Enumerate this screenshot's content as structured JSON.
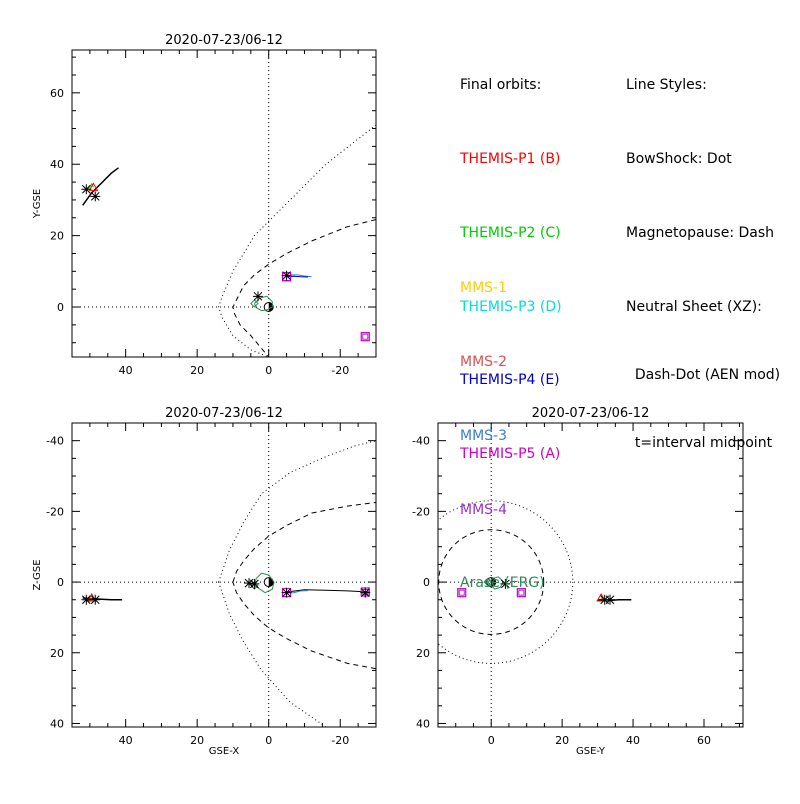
{
  "colors": {
    "themis_p1": "#ff0000",
    "themis_p2": "#00cc00",
    "themis_p3": "#00dddd",
    "themis_p4": "#0000cc",
    "themis_p5": "#cc00cc",
    "mms1": "#ffcc00",
    "mms2": "#e05050",
    "mms3": "#3a7fd0",
    "mms4": "#9933cc",
    "arase": "#2e8b57",
    "text": "#000000"
  },
  "legend": {
    "final_orbits_title": "Final orbits:",
    "themis": [
      {
        "label": "THEMIS-P1 (B)",
        "color": "#ff0000"
      },
      {
        "label": "THEMIS-P2 (C)",
        "color": "#00cc00"
      },
      {
        "label": "THEMIS-P3 (D)",
        "color": "#00dddd"
      },
      {
        "label": "THEMIS-P4 (E)",
        "color": "#0000cc"
      },
      {
        "label": "THEMIS-P5 (A)",
        "color": "#cc00cc"
      }
    ],
    "others": [
      {
        "label": "MMS-1",
        "color": "#ffcc00"
      },
      {
        "label": "MMS-2",
        "color": "#e05050"
      },
      {
        "label": "MMS-3",
        "color": "#3a7fd0"
      },
      {
        "label": "MMS-4",
        "color": "#9933cc"
      },
      {
        "label": "Arase (ERG)",
        "color": "#2e8b57"
      }
    ],
    "line_styles_title": "Line Styles:",
    "styles": [
      "BowShock: Dot",
      "Magnetopause: Dash",
      "Neutral Sheet (XZ):",
      "  Dash-Dot (AEN mod)",
      "  t=interval midpoint"
    ]
  },
  "chart_data": [
    {
      "id": "xy",
      "type": "line",
      "title": "2020-07-23/06-12",
      "xlabel": "",
      "ylabel": "Y-GSE",
      "xlim": [
        55,
        -30
      ],
      "ylim": [
        72,
        -14
      ],
      "xticks": [
        40,
        20,
        0,
        -20
      ],
      "yticks": [
        0,
        20,
        40,
        60
      ],
      "series": [
        {
          "kind": "bowshock",
          "color": "#000000",
          "dash": "1,3",
          "x": [
            -30,
            -16,
            -6,
            4,
            10,
            13,
            14,
            13,
            10,
            5,
            0
          ],
          "y": [
            51,
            40,
            30,
            20,
            10,
            3,
            0,
            -3,
            -8,
            -12,
            -14
          ]
        },
        {
          "kind": "magnetopause",
          "color": "#000000",
          "dash": "5,4",
          "x": [
            -30,
            -22,
            -12,
            -5,
            0,
            4,
            7,
            8.5,
            9.5,
            10,
            9.5,
            8,
            5,
            0
          ],
          "y": [
            24.5,
            22.5,
            18.5,
            15,
            12,
            9,
            6,
            3,
            1,
            0,
            -2,
            -5,
            -8,
            -14
          ]
        },
        {
          "kind": "earth",
          "color": "#000000",
          "x": [
            0
          ],
          "y": [
            0
          ]
        },
        {
          "kind": "arase",
          "color": "#2e8b57",
          "x": [
            4,
            2.5,
            0.5,
            -1,
            -1,
            0.5,
            2,
            3.5,
            4
          ],
          "y": [
            1,
            2.5,
            3,
            1.5,
            0,
            -0.8,
            -1,
            -0.2,
            1
          ]
        },
        {
          "kind": "mms_track",
          "color": "#3a7fd0",
          "x": [
            -5,
            -6,
            -8,
            -10,
            -12
          ],
          "y": [
            8.5,
            9,
            9,
            8.7,
            8.5
          ]
        },
        {
          "kind": "themis_track",
          "color": "#0000cc",
          "x": [
            -5,
            -7,
            -9,
            -11
          ],
          "y": [
            8.5,
            8.6,
            8.5,
            8.4
          ]
        },
        {
          "kind": "themis_far",
          "color": "#cc00cc",
          "x": [
            -27
          ],
          "y": [
            -8.3
          ]
        },
        {
          "kind": "gsat_track",
          "color": "#000000",
          "x": [
            52,
            49.5,
            46.5,
            44,
            42
          ],
          "y": [
            28.5,
            32,
            35,
            37.5,
            39
          ]
        },
        {
          "kind": "gsat_green",
          "color": "#00cc00",
          "x": [
            49,
            49.5,
            50.5,
            51
          ],
          "y": [
            33.5,
            34.5,
            33,
            32.5
          ]
        },
        {
          "kind": "markers",
          "x": [
            48.5,
            51,
            3,
            -5
          ],
          "y": [
            31,
            33,
            3,
            8.8
          ]
        }
      ]
    },
    {
      "id": "xz",
      "type": "line",
      "title": "2020-07-23/06-12",
      "xlabel": "GSE-X",
      "ylabel": "Z-GSE",
      "xlim": [
        55,
        -30
      ],
      "ylim": [
        -45,
        41
      ],
      "xticks": [
        40,
        20,
        0,
        -20
      ],
      "yticks": [
        40,
        20,
        0,
        -20,
        -40
      ],
      "series": [
        {
          "kind": "bowshock_upper",
          "color": "#000000",
          "dash": "1,3",
          "x": [
            -16,
            -6,
            2,
            7,
            11,
            13,
            14
          ],
          "y": [
            41,
            34,
            25,
            17,
            9,
            3,
            0
          ]
        },
        {
          "kind": "bowshock_lower",
          "color": "#000000",
          "dash": "1,3",
          "x": [
            14,
            13,
            11,
            7,
            2,
            -6,
            -16,
            -24,
            -30
          ],
          "y": [
            0,
            -3,
            -9,
            -17,
            -25,
            -31,
            -35.5,
            -38.5,
            -40
          ]
        },
        {
          "kind": "magnetopause_upper",
          "color": "#000000",
          "dash": "5,4",
          "x": [
            -30,
            -22,
            -12,
            -5,
            0,
            4,
            7,
            9,
            10
          ],
          "y": [
            24.5,
            23,
            19.5,
            16,
            13,
            9.5,
            6,
            3,
            0
          ]
        },
        {
          "kind": "magnetopause_lower",
          "color": "#000000",
          "dash": "5,4",
          "x": [
            10,
            9,
            7,
            4,
            0,
            -5,
            -12,
            -22,
            -30
          ],
          "y": [
            0,
            -3,
            -6,
            -9.5,
            -13,
            -16,
            -19.5,
            -21.5,
            -22.5
          ]
        },
        {
          "kind": "earth",
          "color": "#000000",
          "x": [
            0
          ],
          "y": [
            0
          ]
        },
        {
          "kind": "arase",
          "color": "#2e8b57",
          "x": [
            4,
            2.5,
            1,
            -1,
            -1.5,
            0,
            2,
            3.5,
            4
          ],
          "y": [
            1,
            2,
            3,
            2,
            0,
            -2,
            -2.5,
            -1,
            1
          ]
        },
        {
          "kind": "neutral_sheet",
          "color": "#000000",
          "x": [
            -5,
            -10,
            -16,
            -22,
            -28
          ],
          "y": [
            2.8,
            2.2,
            2.3,
            2.5,
            2.8
          ]
        },
        {
          "kind": "mms_track",
          "color": "#3a7fd0",
          "x": [
            -5,
            -7,
            -9,
            -11
          ],
          "y": [
            3,
            3,
            2.5,
            2.4
          ]
        },
        {
          "kind": "themis_far",
          "color": "#cc00cc",
          "x": [
            -27
          ],
          "y": [
            2.8
          ]
        },
        {
          "kind": "gsat_track",
          "color": "#000000",
          "x": [
            52,
            48,
            44,
            41
          ],
          "y": [
            4.5,
            4.8,
            5,
            5
          ]
        },
        {
          "kind": "gsat_green",
          "color": "#00cc00",
          "x": [
            49.5,
            50.5,
            51
          ],
          "y": [
            4.5,
            5.5,
            4.5
          ]
        },
        {
          "kind": "markers",
          "x": [
            48.5,
            51,
            5.5,
            -5,
            -27,
            4
          ],
          "y": [
            5,
            5,
            0.3,
            3,
            3,
            0.5
          ]
        }
      ]
    },
    {
      "id": "yz",
      "type": "line",
      "title": "2020-07-23/06-12",
      "xlabel": "GSE-Y",
      "ylabel": "",
      "xlim": [
        -15,
        71
      ],
      "ylim": [
        -45,
        41
      ],
      "xticks": [
        0,
        20,
        40,
        60
      ],
      "yticks": [
        40,
        20,
        0,
        -20,
        -40
      ],
      "series": [
        {
          "kind": "bowshock",
          "color": "#000000",
          "dash": "1,3",
          "circle": 23
        },
        {
          "kind": "magnetopause",
          "color": "#000000",
          "dash": "5,4",
          "circle": 14.8
        },
        {
          "kind": "earth",
          "color": "#000000",
          "x": [
            0
          ],
          "y": [
            0
          ]
        },
        {
          "kind": "arase",
          "color": "#2e8b57",
          "x": [
            -1,
            1,
            2.5,
            3.5,
            2,
            0.5,
            -1
          ],
          "y": [
            0,
            2,
            1.5,
            0,
            -1.5,
            -1,
            0
          ]
        },
        {
          "kind": "themis_p5",
          "color": "#cc00cc",
          "x": [
            -8.3
          ],
          "y": [
            3
          ]
        },
        {
          "kind": "themis_p4",
          "color": "#cc00cc",
          "x": [
            8.5
          ],
          "y": [
            3
          ]
        },
        {
          "kind": "gsat_track",
          "color": "#000000",
          "x": [
            30,
            33,
            36,
            39.5
          ],
          "y": [
            5,
            5.2,
            5,
            5
          ]
        },
        {
          "kind": "gsat_green",
          "color": "#00cc00",
          "x": [
            31,
            32.5,
            34
          ],
          "y": [
            4.5,
            5.3,
            4.6
          ]
        },
        {
          "kind": "markers",
          "x": [
            32,
            33.5,
            4
          ],
          "y": [
            5,
            5,
            0.5
          ]
        }
      ]
    }
  ]
}
